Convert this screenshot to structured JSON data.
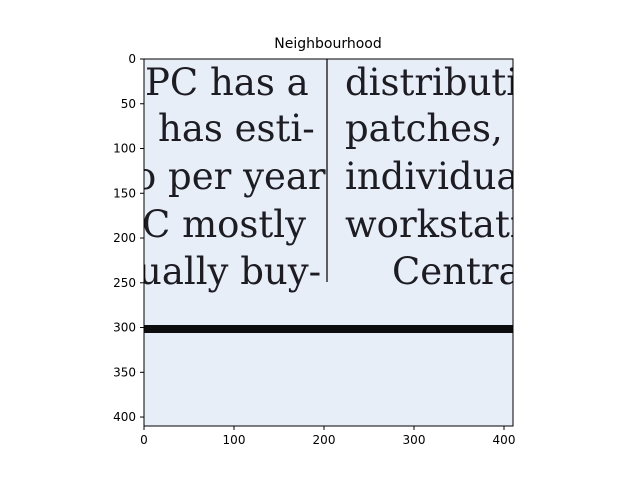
{
  "figure": {
    "title": "Neighbourhood",
    "image_background": "#e8eef8",
    "ink_color": "#1c1c22"
  },
  "axes": {
    "xlim": [
      0,
      410
    ],
    "ylim": [
      410,
      0
    ],
    "x_ticks": [
      0,
      100,
      200,
      300,
      400
    ],
    "y_ticks": [
      0,
      50,
      100,
      150,
      200,
      250,
      300,
      350,
      400
    ],
    "x_tick_labels": [
      "0",
      "100",
      "200",
      "300",
      "400"
    ],
    "y_tick_labels": [
      "0",
      "50",
      "100",
      "150",
      "200",
      "250",
      "300",
      "350",
      "400"
    ]
  },
  "scan": {
    "left_column": [
      "PC has a",
      "has esti-",
      "o per year",
      "C mostly",
      "ually buy-"
    ],
    "right_column": [
      "distributi",
      "patches, a",
      "individual",
      "workstatio",
      "Central"
    ]
  }
}
